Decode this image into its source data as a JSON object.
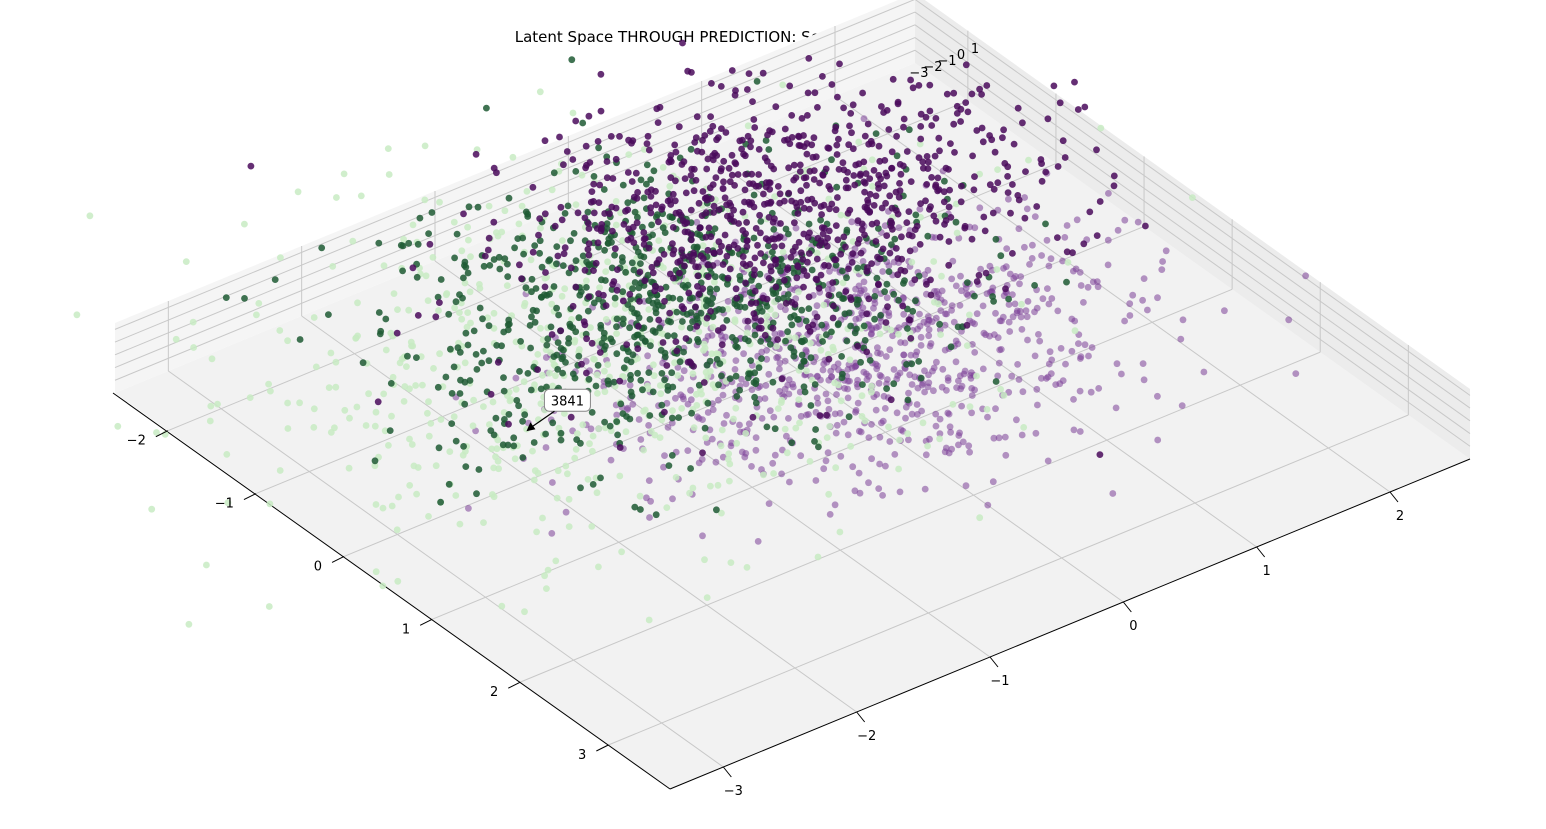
{
  "chart_data": {
    "type": "scatter3d",
    "title": "Latent Space THROUGH PREDICTION: Seen & unseen data",
    "xlabel": "",
    "ylabel": "",
    "zlabel": "",
    "grid": true,
    "axes": {
      "x": {
        "ticks": [
          "−2",
          "−1",
          "0",
          "1",
          "2",
          "3"
        ],
        "range": [
          -2.6,
          3.7
        ]
      },
      "y": {
        "ticks": [
          "−3",
          "−2",
          "−1",
          "0",
          "1",
          "2"
        ],
        "range": [
          -3.4,
          2.6
        ]
      },
      "z": {
        "ticks": [
          "−3",
          "−2",
          "−1",
          "0",
          "1"
        ],
        "range": [
          -3.5,
          1.2
        ]
      }
    },
    "colors": {
      "seen_purple": "#7b3f98",
      "unseen_purple": "#4a0a5c",
      "seen_green": "#c8ebc3",
      "unseen_green": "#1e5a34"
    },
    "series": [
      {
        "color": "#7b3f98",
        "count": 900,
        "center_x": 0.4,
        "center_y": 0.2,
        "spread": 0.8
      },
      {
        "color": "#c8ebc3",
        "count": 650,
        "center_x": -0.6,
        "center_y": -1.0,
        "spread": 1.1
      },
      {
        "color": "#1e5a34",
        "count": 800,
        "center_x": -0.9,
        "center_y": -0.4,
        "spread": 0.8
      },
      {
        "color": "#4a0a5c",
        "count": 850,
        "center_x": -1.3,
        "center_y": 0.8,
        "spread": 0.8
      }
    ],
    "annotation": {
      "text": "3841"
    }
  }
}
